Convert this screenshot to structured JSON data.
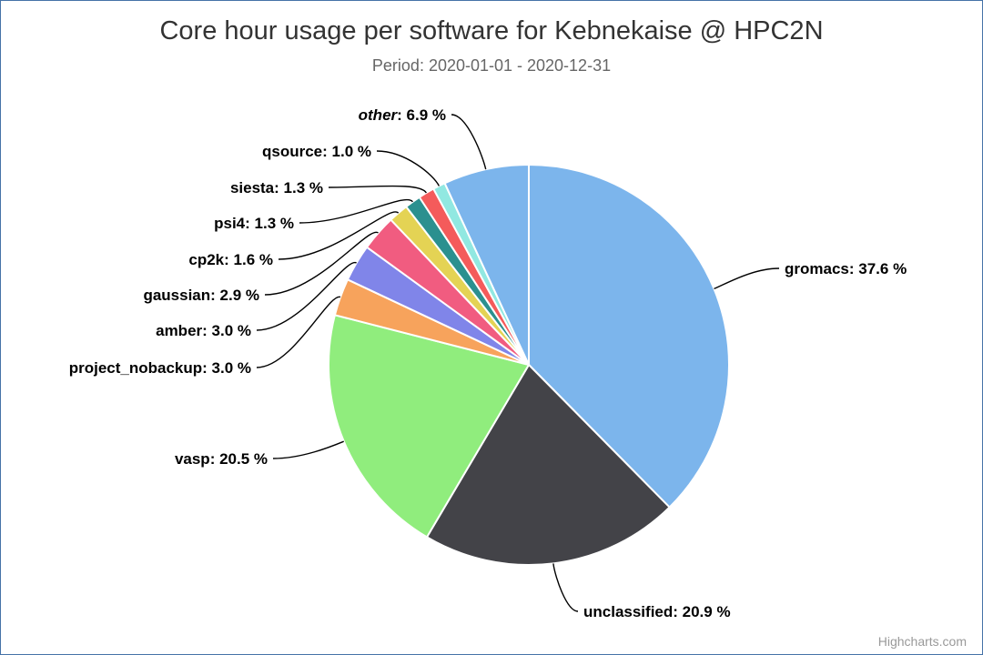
{
  "chart_data": {
    "type": "pie",
    "title": "Core hour usage per software for Kebnekaise @ HPC2N",
    "subtitle": "Period: 2020-01-01 - 2020-12-31",
    "unit": "%",
    "slices": [
      {
        "name": "gromacs",
        "value": 37.6,
        "label": "37.6 %",
        "color": "#7cb5ec",
        "italic": false
      },
      {
        "name": "unclassified",
        "value": 20.9,
        "label": "20.9 %",
        "color": "#434348",
        "italic": false
      },
      {
        "name": "vasp",
        "value": 20.5,
        "label": "20.5 %",
        "color": "#90ed7d",
        "italic": false
      },
      {
        "name": "project_nobackup",
        "value": 3.0,
        "label": "3.0 %",
        "color": "#f7a35c",
        "italic": false
      },
      {
        "name": "amber",
        "value": 3.0,
        "label": "3.0 %",
        "color": "#8085e9",
        "italic": false
      },
      {
        "name": "gaussian",
        "value": 2.9,
        "label": "2.9 %",
        "color": "#f15c80",
        "italic": false
      },
      {
        "name": "cp2k",
        "value": 1.6,
        "label": "1.6 %",
        "color": "#e4d354",
        "italic": false
      },
      {
        "name": "psi4",
        "value": 1.3,
        "label": "1.3 %",
        "color": "#2b908f",
        "italic": false
      },
      {
        "name": "siesta",
        "value": 1.3,
        "label": "1.3 %",
        "color": "#f45b5b",
        "italic": false
      },
      {
        "name": "qsource",
        "value": 1.0,
        "label": "1.0 %",
        "color": "#91e8e1",
        "italic": false
      },
      {
        "name": "other",
        "value": 6.9,
        "label": "6.9 %",
        "color": "#7cb5ec",
        "italic": true
      }
    ]
  },
  "credit": "Highcharts.com"
}
